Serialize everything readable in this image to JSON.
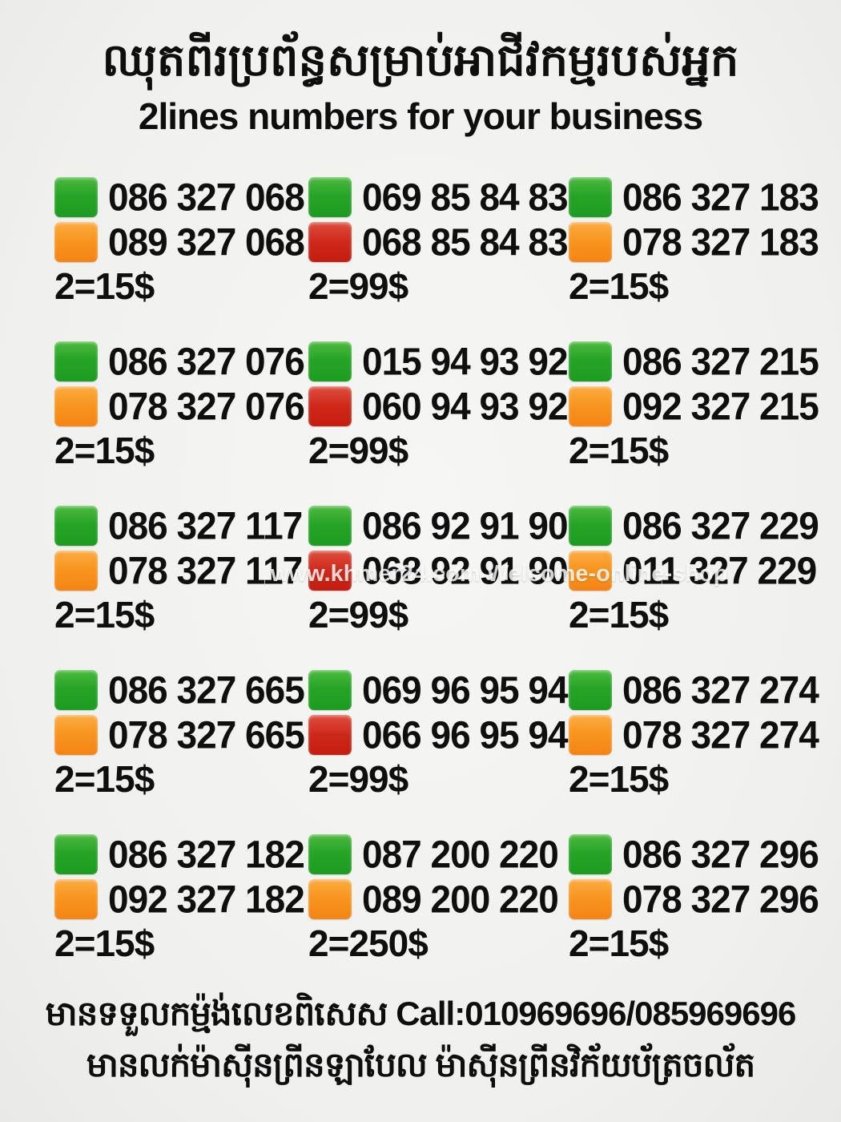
{
  "header": {
    "title_khmer": "ឈុតពីរប្រព័ន្ធសម្រាប់អាជីវកម្មរបស់អ្នក",
    "subtitle": "2lines numbers for your business"
  },
  "swatch_colors": {
    "green": "#27a427",
    "orange": "#f7941e",
    "red": "#cf281b"
  },
  "blocks": [
    {
      "line1": {
        "color": "green",
        "number": "086 327 068"
      },
      "line2": {
        "color": "orange",
        "number": "089 327 068"
      },
      "price": "2=15$"
    },
    {
      "line1": {
        "color": "green",
        "number": "069 85 84 83"
      },
      "line2": {
        "color": "red",
        "number": "068 85 84 83"
      },
      "price": "2=99$"
    },
    {
      "line1": {
        "color": "green",
        "number": "086 327 183"
      },
      "line2": {
        "color": "orange",
        "number": "078 327 183"
      },
      "price": "2=15$"
    },
    {
      "line1": {
        "color": "green",
        "number": "086 327 076"
      },
      "line2": {
        "color": "orange",
        "number": "078 327 076"
      },
      "price": "2=15$"
    },
    {
      "line1": {
        "color": "green",
        "number": "015 94 93 92"
      },
      "line2": {
        "color": "red",
        "number": "060 94 93 92"
      },
      "price": "2=99$"
    },
    {
      "line1": {
        "color": "green",
        "number": "086 327 215"
      },
      "line2": {
        "color": "orange",
        "number": "092 327 215"
      },
      "price": "2=15$"
    },
    {
      "line1": {
        "color": "green",
        "number": "086 327 117"
      },
      "line2": {
        "color": "orange",
        "number": "078 327 117"
      },
      "price": "2=15$"
    },
    {
      "line1": {
        "color": "green",
        "number": "086 92 91 90"
      },
      "line2": {
        "color": "red",
        "number": "068 92 91 90"
      },
      "price": "2=99$"
    },
    {
      "line1": {
        "color": "green",
        "number": "086 327 229"
      },
      "line2": {
        "color": "orange",
        "number": "011 327 229"
      },
      "price": "2=15$"
    },
    {
      "line1": {
        "color": "green",
        "number": "086 327 665"
      },
      "line2": {
        "color": "orange",
        "number": "078 327 665"
      },
      "price": "2=15$"
    },
    {
      "line1": {
        "color": "green",
        "number": "069 96 95 94"
      },
      "line2": {
        "color": "red",
        "number": "066 96 95 94"
      },
      "price": "2=99$"
    },
    {
      "line1": {
        "color": "green",
        "number": "086 327 274"
      },
      "line2": {
        "color": "orange",
        "number": "078 327 274"
      },
      "price": "2=15$"
    },
    {
      "line1": {
        "color": "green",
        "number": "086 327 182"
      },
      "line2": {
        "color": "orange",
        "number": "092 327 182"
      },
      "price": "2=15$"
    },
    {
      "line1": {
        "color": "green",
        "number": "087 200 220"
      },
      "line2": {
        "color": "orange",
        "number": "089 200 220"
      },
      "price": "2=250$"
    },
    {
      "line1": {
        "color": "green",
        "number": "086 327 296"
      },
      "line2": {
        "color": "orange",
        "number": "078 327 296"
      },
      "price": "2=15$"
    }
  ],
  "watermark": "www.khmer24.com Welcome-online-shop",
  "footer": {
    "line1": "មានទទួលកម្ម៉ង់លេខពិសេស Call:010969696/085969696",
    "line2": "មានលក់ម៉ាស៊ីនព្រីនឡាបែល ម៉ាស៊ីនព្រីនវិក័យប័ត្រចល័ត"
  }
}
